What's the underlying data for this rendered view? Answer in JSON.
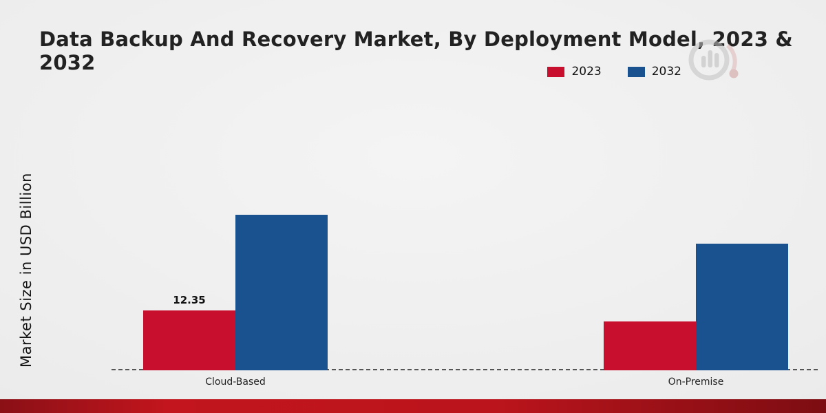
{
  "chart_data": {
    "type": "bar",
    "title": "Data Backup And Recovery Market, By Deployment Model, 2023 & 2032",
    "xlabel": "",
    "ylabel": "Market Size in USD Billion",
    "categories": [
      "Cloud-Based",
      "On-Premise"
    ],
    "series": [
      {
        "name": "2023",
        "color": "#c8102e",
        "values": [
          12.35,
          10.1
        ],
        "data_labels": [
          "12.35",
          ""
        ]
      },
      {
        "name": "2032",
        "color": "#1a5290",
        "values": [
          32.1,
          26.1
        ],
        "data_labels": [
          "",
          ""
        ]
      }
    ],
    "ylim": [
      0,
      35
    ],
    "grid": false,
    "legend_position": "top-right",
    "baseline_style": "dashed",
    "y_axis_ticks_visible": false
  },
  "footer": {
    "accent_color": "#b01319"
  }
}
